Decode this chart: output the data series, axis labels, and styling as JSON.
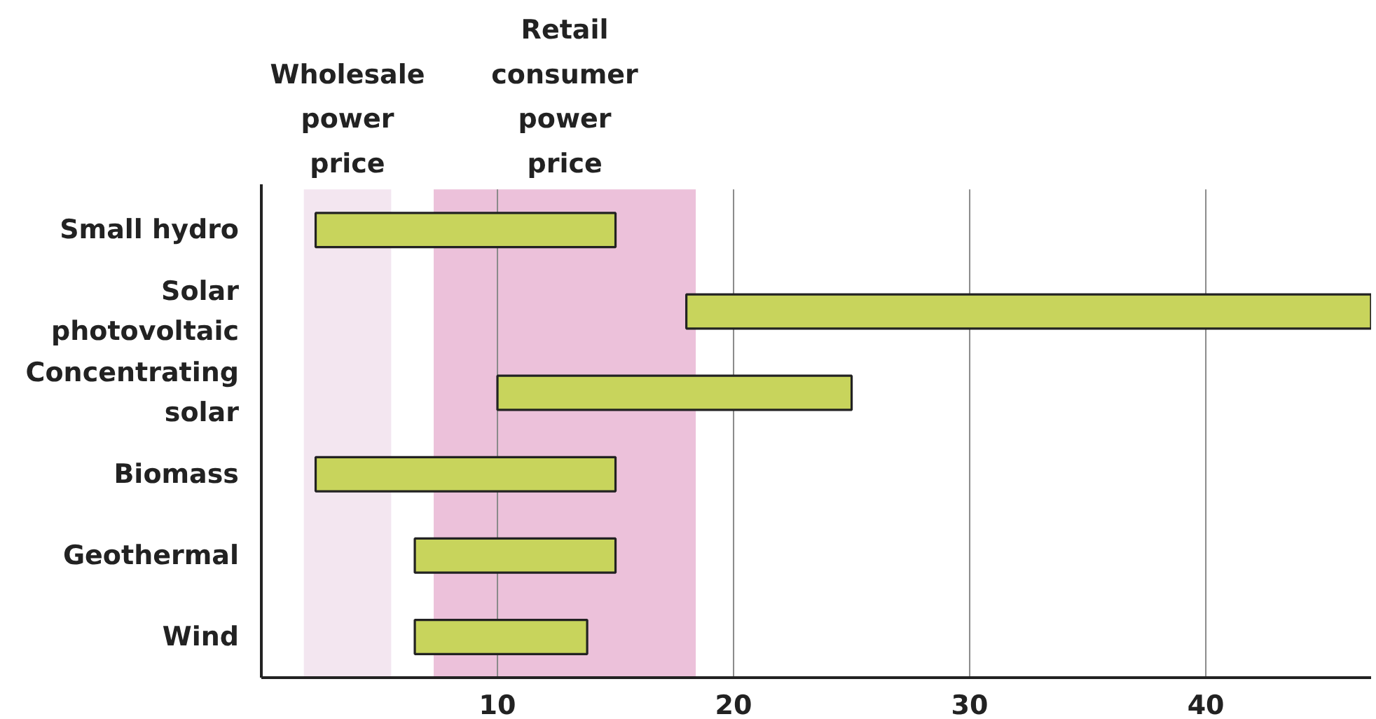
{
  "chart_data": {
    "type": "bar",
    "orientation": "horizontal",
    "categories": [
      "Small hydro",
      "Solar photovoltaic",
      "Concentrating solar",
      "Biomass",
      "Geothermal",
      "Wind"
    ],
    "base": [
      2.3,
      18,
      10,
      2.3,
      6.5,
      6.5
    ],
    "values": [
      12.7,
      29,
      15,
      12.7,
      8.5,
      7.3
    ],
    "color": "#c8d45c",
    "xlim": [
      0,
      47
    ],
    "xticks": [
      10,
      20,
      30,
      40
    ],
    "grid": "x",
    "bands": [
      {
        "axis": "x",
        "from": 1.8,
        "to": 5.5,
        "label": "Wholesale power price",
        "color": "#f3e6f0"
      },
      {
        "axis": "x",
        "from": 7.3,
        "to": 18.4,
        "label": "Retail consumer power price",
        "color": "#ecc1da"
      }
    ]
  }
}
